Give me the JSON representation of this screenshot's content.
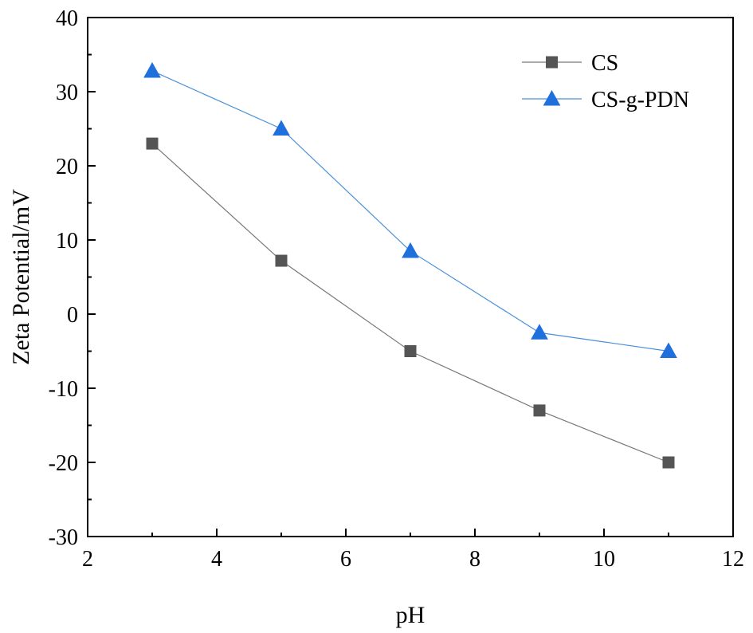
{
  "chart_data": {
    "type": "line",
    "title": "",
    "xlabel": "pH",
    "ylabel": "Zeta Potential/mV",
    "xlim": [
      2,
      12
    ],
    "ylim": [
      -30,
      40
    ],
    "xticks": [
      2,
      4,
      6,
      8,
      10,
      12
    ],
    "yticks": [
      -30,
      -20,
      -10,
      0,
      10,
      20,
      30,
      40
    ],
    "grid": false,
    "legend_position": "top-right",
    "x": [
      3,
      5,
      7,
      9,
      11
    ],
    "series": [
      {
        "name": "CS",
        "marker": "square",
        "color": "#555555",
        "line_color": "#777777",
        "values": [
          23,
          7.2,
          -5,
          -13,
          -20
        ]
      },
      {
        "name": "CS-g-PDN",
        "marker": "triangle",
        "color": "#1f6fdc",
        "line_color": "#4a90d9",
        "values": [
          32.8,
          25,
          8.5,
          -2.5,
          -5
        ]
      }
    ]
  }
}
